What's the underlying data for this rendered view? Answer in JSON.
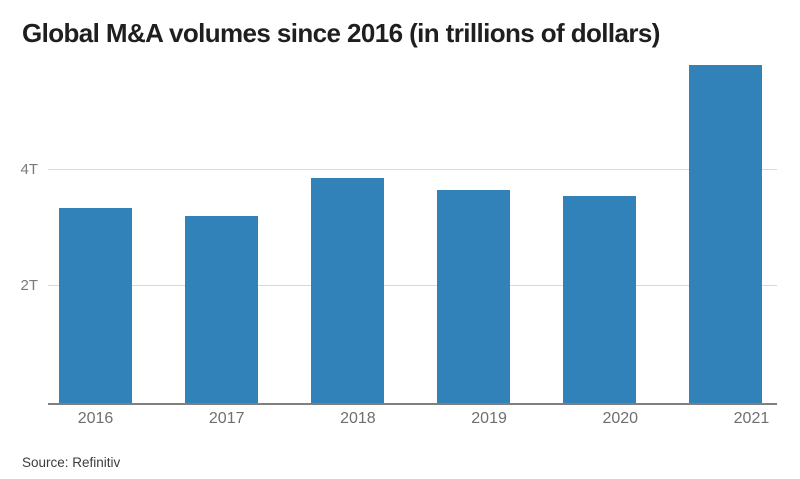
{
  "chart": {
    "title": "Global M&A volumes since 2016 (in trillions of dollars)",
    "source": "Source: Refinitiv"
  },
  "chart_data": {
    "type": "bar",
    "title": "Global M&A volumes since 2016 (in trillions of dollars)",
    "categories": [
      "2016",
      "2017",
      "2018",
      "2019",
      "2020",
      "2021"
    ],
    "values": [
      3.35,
      3.2,
      3.85,
      3.65,
      3.55,
      5.8
    ],
    "unit": "trillions of dollars",
    "xlabel": "",
    "ylabel": "",
    "ylim": [
      0,
      6
    ],
    "yticks": [
      {
        "value": 2,
        "label": "2T"
      },
      {
        "value": 4,
        "label": "4T"
      }
    ],
    "grid": "horizontal-on",
    "legend": "none",
    "bar_color": "#3182b8",
    "source": "Source: Refinitiv"
  },
  "colors": {
    "bar": "#3182b8",
    "title_text": "#1f1f1f",
    "tick_text": "#7a7a7a",
    "year_text": "#6f6f6f",
    "source_text": "#3d3d3d",
    "gridline": "#d9d9d9",
    "baseline": "#7f7f7f",
    "background": "#ffffff"
  }
}
